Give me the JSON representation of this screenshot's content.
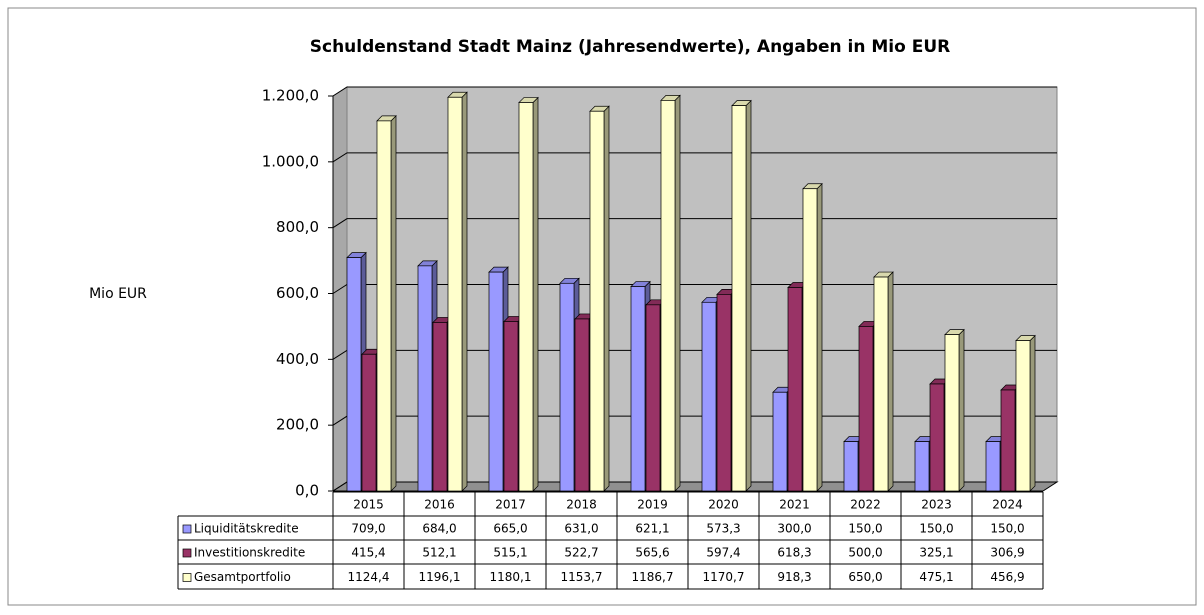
{
  "chart_data": {
    "type": "bar3d",
    "title": "Schuldenstand Stadt Mainz (Jahresendwerte), Angaben in Mio EUR",
    "y_label": "Mio EUR",
    "categories": [
      "2015",
      "2016",
      "2017",
      "2018",
      "2019",
      "2020",
      "2021",
      "2022",
      "2023",
      "2024"
    ],
    "series": [
      {
        "name": "Liquiditätskredite",
        "color": "#9999ff",
        "values": [
          709.0,
          684.0,
          665.0,
          631.0,
          621.1,
          573.3,
          300.0,
          150.0,
          150.0,
          150.0
        ],
        "value_labels": [
          "709,0",
          "684,0",
          "665,0",
          "631,0",
          "621,1",
          "573,3",
          "300,0",
          "150,0",
          "150,0",
          "150,0"
        ]
      },
      {
        "name": "Investitionskredite",
        "color": "#993366",
        "values": [
          415.4,
          512.1,
          515.1,
          522.7,
          565.6,
          597.4,
          618.3,
          500.0,
          325.1,
          306.9
        ],
        "value_labels": [
          "415,4",
          "512,1",
          "515,1",
          "522,7",
          "565,6",
          "597,4",
          "618,3",
          "500,0",
          "325,1",
          "306,9"
        ]
      },
      {
        "name": "Gesamtportfolio",
        "color": "#ffffcc",
        "values": [
          1124.4,
          1196.1,
          1180.1,
          1153.7,
          1186.7,
          1170.7,
          918.3,
          650.0,
          475.1,
          456.9
        ],
        "value_labels": [
          "1124,4",
          "1196,1",
          "1180,1",
          "1153,7",
          "1186,7",
          "1170,7",
          "918,3",
          "650,0",
          "475,1",
          "456,9"
        ]
      }
    ],
    "ylim": [
      0,
      1200
    ],
    "yticks": [
      {
        "value": 0,
        "label": "0,0"
      },
      {
        "value": 200,
        "label": "200,0"
      },
      {
        "value": 400,
        "label": "400,0"
      },
      {
        "value": 600,
        "label": "600,0"
      },
      {
        "value": 800,
        "label": "800,0"
      },
      {
        "value": 1000,
        "label": "1.000,0"
      },
      {
        "value": 1200,
        "label": "1.200,0"
      }
    ],
    "grid": true
  }
}
